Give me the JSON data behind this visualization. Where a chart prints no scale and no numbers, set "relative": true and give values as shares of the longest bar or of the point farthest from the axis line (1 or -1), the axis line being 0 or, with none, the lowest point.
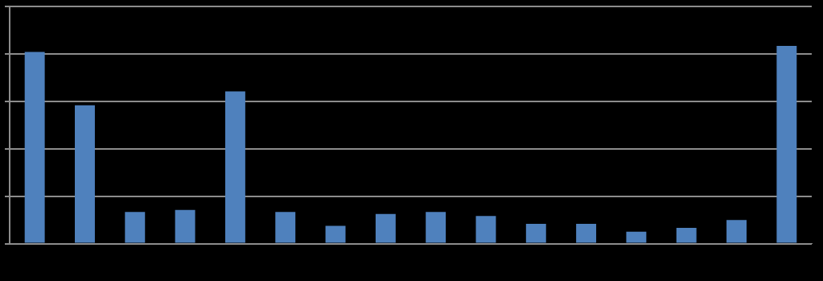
{
  "chart_data": {
    "type": "bar",
    "relative": true,
    "categories": [
      null,
      null,
      null,
      null,
      null,
      null,
      null,
      null,
      null,
      null,
      null,
      null,
      null,
      null,
      null,
      null
    ],
    "values": [
      0.97,
      0.7,
      0.16,
      0.17,
      0.77,
      0.16,
      0.09,
      0.15,
      0.16,
      0.14,
      0.1,
      0.1,
      0.06,
      0.08,
      0.12,
      1
    ],
    "color": "#4f81bd",
    "grid": "y",
    "legend": false
  }
}
